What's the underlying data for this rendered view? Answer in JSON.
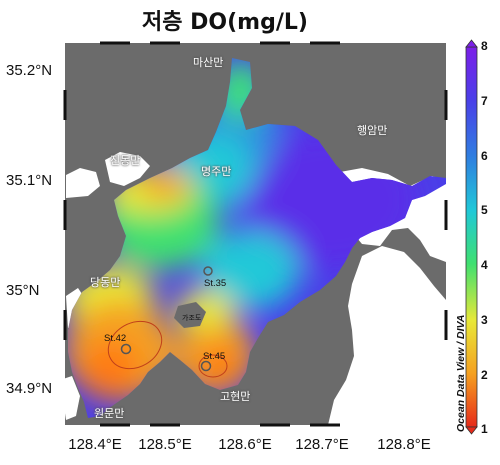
{
  "title": "저층 DO(mg/L)",
  "lat_labels": [
    "35.2°N",
    "35.1°N",
    "35°N",
    "34.9°N"
  ],
  "lon_labels": [
    "128.4°E",
    "128.5°E",
    "128.6°E",
    "128.7°E",
    "128.8°E"
  ],
  "colorbar": {
    "min": 1,
    "max": 8,
    "ticks": [
      "8",
      "7",
      "6",
      "5",
      "4",
      "3",
      "2",
      "1"
    ],
    "colors": [
      "#7b1fe8",
      "#4a3fe8",
      "#2f7fe0",
      "#20c8d8",
      "#3fe070",
      "#e8e838",
      "#f5a020",
      "#e62a1a"
    ]
  },
  "credit": "Ocean Data View / DIVA",
  "places": [
    "마산만",
    "행암만",
    "진동만",
    "명주만",
    "당동만",
    "원문만",
    "고현만"
  ],
  "stations": [
    "St.35",
    "St.42",
    "St.45"
  ],
  "small_label": "가조도",
  "land_color": "#6b6b6b"
}
